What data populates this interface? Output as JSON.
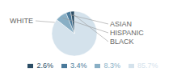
{
  "chart_data": {
    "type": "pie",
    "categories": [
      "WHITE",
      "HISPANIC",
      "ASIAN",
      "BLACK"
    ],
    "values": [
      85.7,
      8.3,
      3.4,
      2.6
    ],
    "value_labels": [
      "85.7%",
      "8.3%",
      "3.4%",
      "2.6%"
    ],
    "colors": [
      "#d4e2ec",
      "#89afc5",
      "#4a7a9b",
      "#2b4d65"
    ],
    "legend": "bottom"
  }
}
